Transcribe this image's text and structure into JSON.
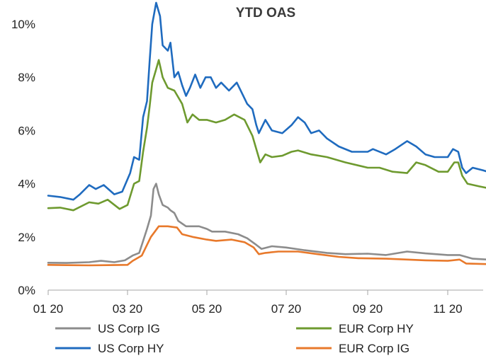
{
  "chart_data": {
    "type": "line",
    "title": "YTD OAS",
    "xlabel": "",
    "ylabel": "",
    "x_ticks": [
      "01 20",
      "03 20",
      "05 20",
      "07 20",
      "09 20",
      "11 20"
    ],
    "y_ticks": [
      "0%",
      "2%",
      "4%",
      "6%",
      "8%",
      "10%"
    ],
    "ylim": [
      0,
      10.8
    ],
    "xlim": [
      "2020-01-01",
      "2020-12-15"
    ],
    "grid": false,
    "legend_position": "bottom",
    "series": [
      {
        "name": "US Corp IG",
        "color": "#8c8c8c",
        "points": [
          [
            "2020-01-01",
            1.03
          ],
          [
            "2020-01-15",
            1.02
          ],
          [
            "2020-02-01",
            1.05
          ],
          [
            "2020-02-10",
            1.1
          ],
          [
            "2020-02-20",
            1.05
          ],
          [
            "2020-02-28",
            1.12
          ],
          [
            "2020-03-05",
            1.3
          ],
          [
            "2020-03-10",
            1.4
          ],
          [
            "2020-03-12",
            1.7
          ],
          [
            "2020-03-16",
            2.3
          ],
          [
            "2020-03-19",
            2.8
          ],
          [
            "2020-03-21",
            3.8
          ],
          [
            "2020-03-23",
            4.0
          ],
          [
            "2020-03-25",
            3.6
          ],
          [
            "2020-03-28",
            3.2
          ],
          [
            "2020-04-01",
            3.1
          ],
          [
            "2020-04-03",
            3.0
          ],
          [
            "2020-04-06",
            2.9
          ],
          [
            "2020-04-09",
            2.6
          ],
          [
            "2020-04-15",
            2.4
          ],
          [
            "2020-04-25",
            2.4
          ],
          [
            "2020-05-01",
            2.3
          ],
          [
            "2020-05-05",
            2.2
          ],
          [
            "2020-05-15",
            2.2
          ],
          [
            "2020-05-25",
            2.1
          ],
          [
            "2020-06-01",
            1.95
          ],
          [
            "2020-06-08",
            1.7
          ],
          [
            "2020-06-12",
            1.55
          ],
          [
            "2020-06-20",
            1.65
          ],
          [
            "2020-07-01",
            1.6
          ],
          [
            "2020-07-15",
            1.5
          ],
          [
            "2020-08-01",
            1.4
          ],
          [
            "2020-08-15",
            1.35
          ],
          [
            "2020-09-01",
            1.37
          ],
          [
            "2020-09-15",
            1.32
          ],
          [
            "2020-10-01",
            1.45
          ],
          [
            "2020-10-15",
            1.38
          ],
          [
            "2020-11-01",
            1.32
          ],
          [
            "2020-11-10",
            1.32
          ],
          [
            "2020-11-20",
            1.18
          ],
          [
            "2020-12-01",
            1.15
          ],
          [
            "2020-12-15",
            1.12
          ]
        ]
      },
      {
        "name": "US Corp HY",
        "color": "#1f6bbf",
        "points": [
          [
            "2020-01-01",
            3.55
          ],
          [
            "2020-01-10",
            3.5
          ],
          [
            "2020-01-20",
            3.4
          ],
          [
            "2020-01-25",
            3.6
          ],
          [
            "2020-02-01",
            3.95
          ],
          [
            "2020-02-06",
            3.8
          ],
          [
            "2020-02-12",
            3.95
          ],
          [
            "2020-02-20",
            3.6
          ],
          [
            "2020-02-26",
            3.7
          ],
          [
            "2020-03-03",
            4.4
          ],
          [
            "2020-03-06",
            5.0
          ],
          [
            "2020-03-10",
            4.9
          ],
          [
            "2020-03-13",
            6.5
          ],
          [
            "2020-03-16",
            7.1
          ],
          [
            "2020-03-18",
            8.6
          ],
          [
            "2020-03-20",
            10.0
          ],
          [
            "2020-03-23",
            10.8
          ],
          [
            "2020-03-26",
            10.3
          ],
          [
            "2020-03-28",
            9.2
          ],
          [
            "2020-04-01",
            9.0
          ],
          [
            "2020-04-03",
            9.3
          ],
          [
            "2020-04-06",
            8.0
          ],
          [
            "2020-04-09",
            8.2
          ],
          [
            "2020-04-12",
            7.7
          ],
          [
            "2020-04-15",
            7.3
          ],
          [
            "2020-04-18",
            7.6
          ],
          [
            "2020-04-22",
            8.1
          ],
          [
            "2020-04-26",
            7.6
          ],
          [
            "2020-04-30",
            8.0
          ],
          [
            "2020-05-04",
            8.0
          ],
          [
            "2020-05-08",
            7.6
          ],
          [
            "2020-05-12",
            7.8
          ],
          [
            "2020-05-18",
            7.5
          ],
          [
            "2020-05-24",
            7.8
          ],
          [
            "2020-05-28",
            7.4
          ],
          [
            "2020-06-01",
            7.0
          ],
          [
            "2020-06-05",
            6.8
          ],
          [
            "2020-06-08",
            6.2
          ],
          [
            "2020-06-10",
            5.9
          ],
          [
            "2020-06-15",
            6.4
          ],
          [
            "2020-06-20",
            6.0
          ],
          [
            "2020-06-28",
            5.9
          ],
          [
            "2020-07-05",
            6.2
          ],
          [
            "2020-07-10",
            6.5
          ],
          [
            "2020-07-15",
            6.3
          ],
          [
            "2020-07-20",
            5.9
          ],
          [
            "2020-07-26",
            6.0
          ],
          [
            "2020-08-01",
            5.7
          ],
          [
            "2020-08-10",
            5.4
          ],
          [
            "2020-08-20",
            5.2
          ],
          [
            "2020-09-01",
            5.2
          ],
          [
            "2020-09-05",
            5.3
          ],
          [
            "2020-09-15",
            5.1
          ],
          [
            "2020-09-22",
            5.3
          ],
          [
            "2020-10-01",
            5.6
          ],
          [
            "2020-10-08",
            5.4
          ],
          [
            "2020-10-15",
            5.1
          ],
          [
            "2020-10-22",
            5.0
          ],
          [
            "2020-11-01",
            5.0
          ],
          [
            "2020-11-05",
            5.3
          ],
          [
            "2020-11-09",
            5.2
          ],
          [
            "2020-11-12",
            4.6
          ],
          [
            "2020-11-15",
            4.4
          ],
          [
            "2020-11-20",
            4.6
          ],
          [
            "2020-11-28",
            4.5
          ],
          [
            "2020-12-05",
            4.4
          ],
          [
            "2020-12-10",
            4.35
          ],
          [
            "2020-12-15",
            4.4
          ]
        ]
      },
      {
        "name": "EUR Corp HY",
        "color": "#6e9a2f",
        "points": [
          [
            "2020-01-01",
            3.08
          ],
          [
            "2020-01-10",
            3.1
          ],
          [
            "2020-01-20",
            3.0
          ],
          [
            "2020-02-01",
            3.3
          ],
          [
            "2020-02-08",
            3.25
          ],
          [
            "2020-02-15",
            3.4
          ],
          [
            "2020-02-24",
            3.05
          ],
          [
            "2020-03-01",
            3.2
          ],
          [
            "2020-03-06",
            4.0
          ],
          [
            "2020-03-10",
            4.1
          ],
          [
            "2020-03-13",
            5.2
          ],
          [
            "2020-03-16",
            6.1
          ],
          [
            "2020-03-18",
            6.9
          ],
          [
            "2020-03-20",
            7.8
          ],
          [
            "2020-03-23",
            8.3
          ],
          [
            "2020-03-25",
            8.65
          ],
          [
            "2020-03-28",
            8.0
          ],
          [
            "2020-04-01",
            7.6
          ],
          [
            "2020-04-06",
            7.5
          ],
          [
            "2020-04-12",
            7.0
          ],
          [
            "2020-04-16",
            6.3
          ],
          [
            "2020-04-20",
            6.6
          ],
          [
            "2020-04-25",
            6.4
          ],
          [
            "2020-05-01",
            6.4
          ],
          [
            "2020-05-08",
            6.3
          ],
          [
            "2020-05-15",
            6.4
          ],
          [
            "2020-05-22",
            6.6
          ],
          [
            "2020-05-30",
            6.4
          ],
          [
            "2020-06-05",
            5.8
          ],
          [
            "2020-06-08",
            5.3
          ],
          [
            "2020-06-11",
            4.8
          ],
          [
            "2020-06-15",
            5.1
          ],
          [
            "2020-06-20",
            5.0
          ],
          [
            "2020-06-28",
            5.05
          ],
          [
            "2020-07-05",
            5.2
          ],
          [
            "2020-07-10",
            5.25
          ],
          [
            "2020-07-20",
            5.1
          ],
          [
            "2020-08-01",
            5.0
          ],
          [
            "2020-08-15",
            4.8
          ],
          [
            "2020-09-01",
            4.6
          ],
          [
            "2020-09-10",
            4.6
          ],
          [
            "2020-09-20",
            4.45
          ],
          [
            "2020-10-01",
            4.4
          ],
          [
            "2020-10-08",
            4.8
          ],
          [
            "2020-10-15",
            4.7
          ],
          [
            "2020-10-25",
            4.45
          ],
          [
            "2020-11-01",
            4.45
          ],
          [
            "2020-11-06",
            4.8
          ],
          [
            "2020-11-09",
            4.8
          ],
          [
            "2020-11-12",
            4.3
          ],
          [
            "2020-11-16",
            4.0
          ],
          [
            "2020-11-25",
            3.9
          ],
          [
            "2020-12-05",
            3.8
          ],
          [
            "2020-12-15",
            3.72
          ]
        ]
      },
      {
        "name": "EUR Corp IG",
        "color": "#e8792b",
        "points": [
          [
            "2020-01-01",
            0.95
          ],
          [
            "2020-01-15",
            0.94
          ],
          [
            "2020-02-01",
            0.93
          ],
          [
            "2020-02-15",
            0.94
          ],
          [
            "2020-03-01",
            0.95
          ],
          [
            "2020-03-05",
            1.1
          ],
          [
            "2020-03-12",
            1.3
          ],
          [
            "2020-03-16",
            1.7
          ],
          [
            "2020-03-19",
            2.0
          ],
          [
            "2020-03-22",
            2.2
          ],
          [
            "2020-03-25",
            2.4
          ],
          [
            "2020-04-01",
            2.4
          ],
          [
            "2020-04-08",
            2.35
          ],
          [
            "2020-04-12",
            2.1
          ],
          [
            "2020-04-20",
            2.0
          ],
          [
            "2020-05-01",
            1.9
          ],
          [
            "2020-05-08",
            1.85
          ],
          [
            "2020-05-20",
            1.9
          ],
          [
            "2020-05-30",
            1.8
          ],
          [
            "2020-06-06",
            1.6
          ],
          [
            "2020-06-10",
            1.35
          ],
          [
            "2020-06-15",
            1.4
          ],
          [
            "2020-06-25",
            1.45
          ],
          [
            "2020-07-10",
            1.45
          ],
          [
            "2020-07-25",
            1.35
          ],
          [
            "2020-08-10",
            1.25
          ],
          [
            "2020-08-25",
            1.2
          ],
          [
            "2020-09-15",
            1.18
          ],
          [
            "2020-10-01",
            1.15
          ],
          [
            "2020-10-15",
            1.12
          ],
          [
            "2020-11-01",
            1.1
          ],
          [
            "2020-11-10",
            1.15
          ],
          [
            "2020-11-15",
            1.0
          ],
          [
            "2020-12-01",
            0.98
          ],
          [
            "2020-12-15",
            0.95
          ]
        ]
      }
    ]
  }
}
